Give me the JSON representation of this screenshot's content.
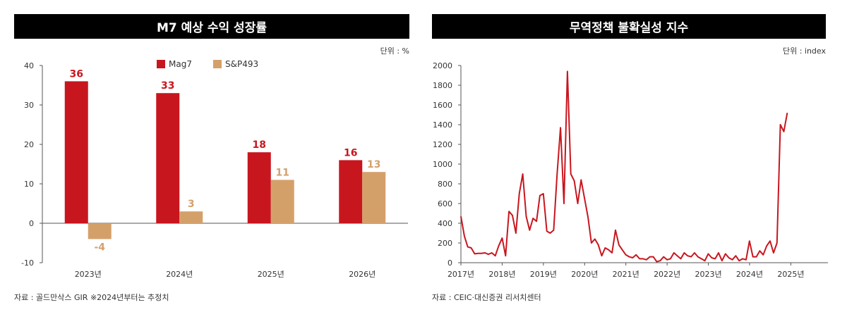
{
  "chart_data": [
    {
      "type": "bar",
      "title": "M7 예상 수익 성장률",
      "unit_label": "단위 : %",
      "categories": [
        "2023년",
        "2024년",
        "2025년",
        "2026년"
      ],
      "series": [
        {
          "name": "Mag7",
          "values": [
            36,
            33,
            18,
            16
          ],
          "labels": [
            "36",
            "33",
            "18",
            "16"
          ]
        },
        {
          "name": "S&P493",
          "values": [
            -4,
            3,
            11,
            13
          ],
          "labels": [
            "-4",
            "3",
            "11",
            "13"
          ]
        }
      ],
      "ylim": [
        -10,
        40
      ],
      "yticks": [
        40,
        30,
        20,
        10,
        0,
        -10
      ],
      "ytick_labels": [
        "40",
        "30",
        "20",
        "10",
        "0",
        "-10"
      ],
      "legend": "top-center",
      "source": "자료 : 골드만삭스 GIR ※2024년부터는 추정치"
    },
    {
      "type": "line",
      "title": "무역정책 불확실성 지수",
      "unit_label": "단위 : index",
      "series": [
        {
          "name": "무역정책 불확실성 지수",
          "x_start": 2017.0,
          "x_step": 0.0833,
          "values": [
            470,
            270,
            160,
            150,
            90,
            95,
            95,
            100,
            85,
            100,
            70,
            170,
            250,
            70,
            520,
            480,
            300,
            700,
            900,
            470,
            330,
            450,
            420,
            680,
            700,
            320,
            300,
            330,
            900,
            1370,
            600,
            1940,
            900,
            830,
            600,
            840,
            650,
            460,
            200,
            240,
            180,
            70,
            150,
            130,
            100,
            330,
            180,
            130,
            80,
            60,
            50,
            80,
            40,
            40,
            30,
            60,
            60,
            10,
            20,
            60,
            30,
            40,
            100,
            70,
            40,
            100,
            70,
            60,
            100,
            60,
            40,
            20,
            90,
            50,
            40,
            100,
            20,
            90,
            50,
            30,
            70,
            20,
            40,
            30,
            220,
            60,
            60,
            120,
            80,
            170,
            220,
            100,
            200,
            1400,
            1330,
            1520
          ]
        }
      ],
      "xlim": [
        2017.0,
        2025.9
      ],
      "ylim": [
        0,
        2000
      ],
      "xticks": [
        2017,
        2018,
        2019,
        2020,
        2021,
        2022,
        2023,
        2024,
        2025
      ],
      "xtick_labels": [
        "2017년",
        "2018년",
        "2019년",
        "2020년",
        "2021년",
        "2022년",
        "2023년",
        "2024년",
        "2025년"
      ],
      "yticks": [
        2000,
        1800,
        1600,
        1400,
        1200,
        1000,
        800,
        600,
        400,
        200,
        0
      ],
      "ytick_labels": [
        "2000",
        "1800",
        "1600",
        "1400",
        "1200",
        "1000",
        "800",
        "600",
        "400",
        "200",
        "0"
      ],
      "source": "자료 : CEIC·대신증권 리서치센터"
    }
  ],
  "colors": {
    "mag7": "#c8161e",
    "sp493": "#d4a06a",
    "line": "#c8161e",
    "axis": "#555555"
  }
}
